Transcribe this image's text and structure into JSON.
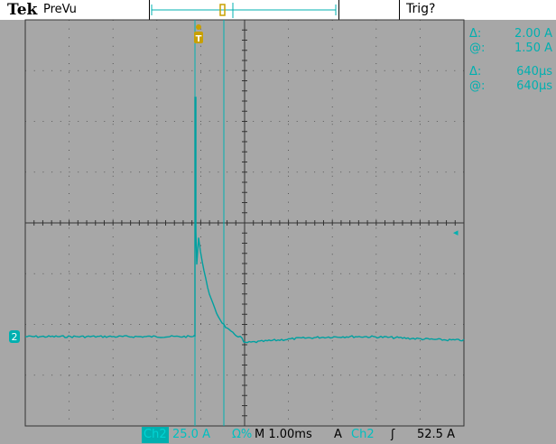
{
  "header": {
    "brand": "Tek",
    "mode": "PreVu",
    "trigger_status": "Trig?",
    "trigger_marker": "T"
  },
  "cursor_readouts": {
    "amplitude": [
      {
        "symbol": "Δ:",
        "value": "2.00 A"
      },
      {
        "symbol": "@:",
        "value": "1.50 A"
      }
    ],
    "time": [
      {
        "symbol": "Δ:",
        "value": "640µs"
      },
      {
        "symbol": "@:",
        "value": "640µs"
      }
    ]
  },
  "markers": {
    "channel_ground": "2",
    "trigger_level": "◂",
    "trigger_time": "T"
  },
  "status_bar": {
    "channel": "Ch2",
    "volts_per_div": "25.0 A",
    "coupling_symbol": "Ω%",
    "timebase": "M 1.00ms",
    "trigger_mode": "A",
    "trigger_source": "Ch2",
    "trigger_slope": "ʃ",
    "trigger_level": "52.5 A"
  },
  "colors": {
    "trace": "#00a0a0",
    "cursor": "#00b0b0",
    "trigger": "#c8a000",
    "screen": "#a7a7a7",
    "topbar": "#ffffff"
  }
}
